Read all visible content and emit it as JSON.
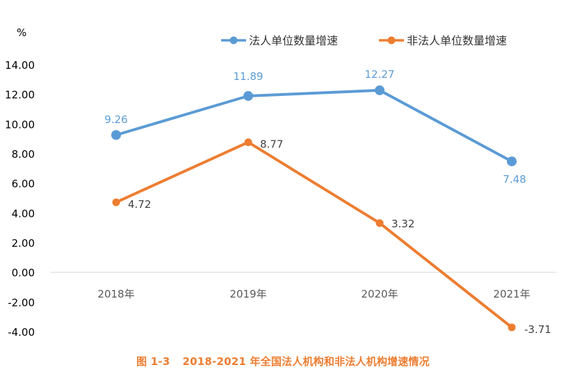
{
  "chart_data": {
    "type": "line",
    "unit": "%",
    "categories": [
      "2018年",
      "2019年",
      "2020年",
      "2021年"
    ],
    "y_ticks": [
      "14.00",
      "12.00",
      "10.00",
      "8.00",
      "6.00",
      "4.00",
      "2.00",
      "0.00",
      "-2.00",
      "-4.00"
    ],
    "ylim": [
      -4,
      14
    ],
    "grid": false,
    "legend_position": "top",
    "series": [
      {
        "name": "法人单位数量增速",
        "color": "#5b9bd5",
        "values": [
          9.26,
          11.89,
          12.27,
          7.48
        ],
        "labels": [
          "9.26",
          "11.89",
          "12.27",
          "7.48"
        ],
        "label_color": "#5b9bd5"
      },
      {
        "name": "非法人单位数量增速",
        "color": "#ed7d31",
        "values": [
          4.72,
          8.77,
          3.32,
          -3.71
        ],
        "labels": [
          "4.72",
          "8.77",
          "3.32",
          "-3.71"
        ],
        "label_color": "#404040"
      }
    ]
  },
  "caption": {
    "number": "图 1-3",
    "text": "2018-2021 年全国法人机构和非法人机构增速情况"
  }
}
